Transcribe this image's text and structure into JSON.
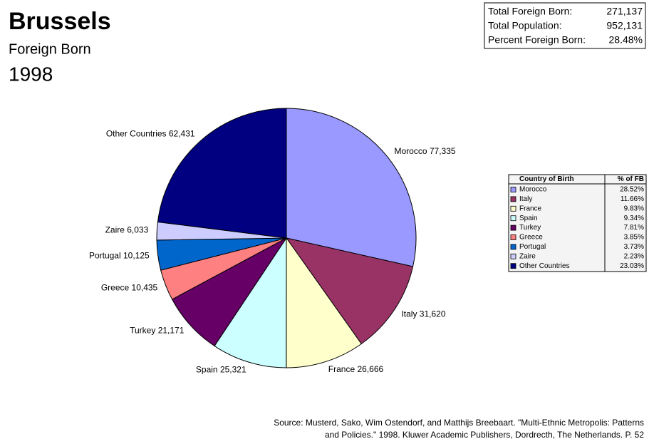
{
  "chart_data": {
    "type": "pie",
    "title": "Brussels",
    "subtitle": "Foreign Born",
    "year": "1998",
    "categories": [
      "Morocco",
      "Italy",
      "France",
      "Spain",
      "Turkey",
      "Greece",
      "Portugal",
      "Zaire",
      "Other Countries"
    ],
    "values": [
      77335,
      31620,
      26666,
      25321,
      21171,
      10435,
      10125,
      6033,
      62431
    ],
    "value_labels": [
      "77,335",
      "31,620",
      "26,666",
      "25,321",
      "21,171",
      "10,435",
      "10,125",
      "6,033",
      "62,431"
    ],
    "colors": [
      "#9999ff",
      "#993366",
      "#ffffcc",
      "#ccffff",
      "#660066",
      "#ff8080",
      "#0066cc",
      "#ccccff",
      "#000080"
    ],
    "summary": [
      {
        "label": "Total Foreign Born:",
        "value": 271137,
        "value_label": "271,137"
      },
      {
        "label": "Total Population:",
        "value": 952131,
        "value_label": "952,131"
      },
      {
        "label": "Percent Foreign Born:",
        "value": 28.48,
        "value_label": "28.48%"
      }
    ],
    "table": {
      "headers": [
        "Country of Birth",
        "% of FB"
      ],
      "percents": [
        28.52,
        11.66,
        9.83,
        9.34,
        7.81,
        3.85,
        3.73,
        2.23,
        23.03
      ],
      "percent_labels": [
        "28.52%",
        "11.66%",
        "9.83%",
        "9.34%",
        "7.81%",
        "3.85%",
        "3.73%",
        "2.23%",
        "23.03%"
      ]
    },
    "source": [
      "Source: Musterd, Sako, Wim Ostendorf, and Matthijs Breebaart. \"Multi-Ethnic Metropolis: Patterns",
      "and Policies.\" 1998. Kluwer Academic Publishers, Dordrecth, The Netherlands. P. 52"
    ]
  }
}
